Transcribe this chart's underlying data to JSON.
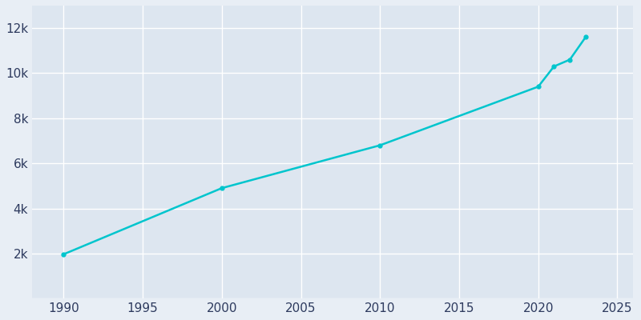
{
  "years": [
    1990,
    2000,
    2010,
    2020,
    2021,
    2022,
    2023
  ],
  "population": [
    1966,
    4900,
    6800,
    9400,
    10300,
    10600,
    11600
  ],
  "line_color": "#00c5cd",
  "marker_color": "#00c5cd",
  "background_color": "#e8eef5",
  "axes_bg_color": "#dde6f0",
  "grid_color": "#ffffff",
  "tick_label_color": "#2d3a5e",
  "xlim": [
    1988,
    2026
  ],
  "ylim": [
    0,
    13000
  ],
  "xticks": [
    1990,
    1995,
    2000,
    2005,
    2010,
    2015,
    2020,
    2025
  ],
  "yticks": [
    0,
    2000,
    4000,
    6000,
    8000,
    10000,
    12000
  ],
  "ytick_labels": [
    "",
    "2k",
    "4k",
    "6k",
    "8k",
    "10k",
    "12k"
  ]
}
